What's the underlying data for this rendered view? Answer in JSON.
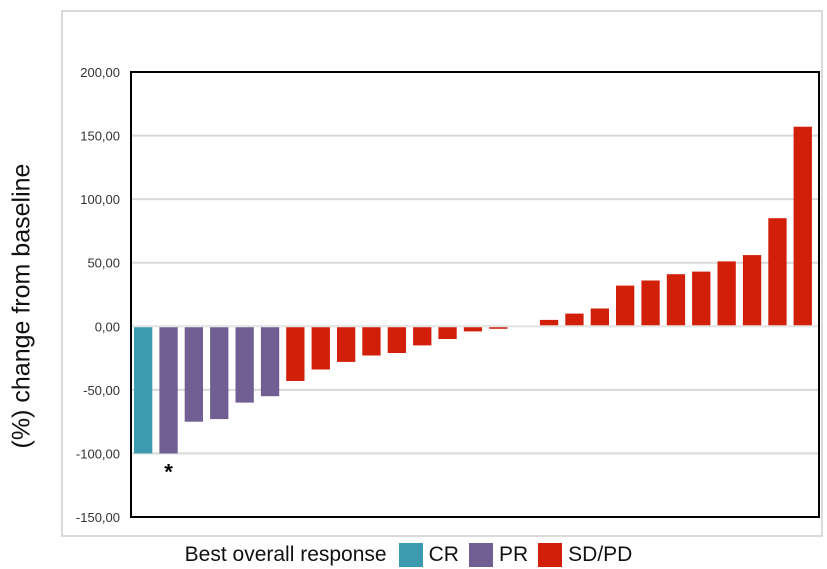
{
  "chart_data": {
    "type": "bar",
    "ylabel": "(%) change from baseline",
    "ylim": [
      -150,
      200
    ],
    "yticks": [
      -150,
      -100,
      -50,
      0,
      50,
      100,
      150,
      200
    ],
    "ytick_labels": [
      "-150,00",
      "-100,00",
      "-50,00",
      "0,00",
      "50,00",
      "100,00",
      "150,00",
      "200,00"
    ],
    "grid": true,
    "legend": {
      "title": "Best overall response",
      "placement": "bottom",
      "entries": [
        {
          "label": "CR",
          "color": "#3d9bb0"
        },
        {
          "label": "PR",
          "color": "#715e92"
        },
        {
          "label": "SD/PD",
          "color": "#d21f0a"
        }
      ]
    },
    "values": [
      -100,
      -100,
      -75,
      -73,
      -60,
      -55,
      -43,
      -34,
      -28,
      -23,
      -21,
      -15,
      -10,
      -4,
      -2,
      0,
      5,
      10,
      14,
      32,
      36,
      41,
      43,
      51,
      56,
      85,
      157
    ],
    "groups": [
      "CR",
      "PR",
      "PR",
      "PR",
      "PR",
      "PR",
      "SD/PD",
      "SD/PD",
      "SD/PD",
      "SD/PD",
      "SD/PD",
      "SD/PD",
      "SD/PD",
      "SD/PD",
      "SD/PD",
      "SD/PD",
      "SD/PD",
      "SD/PD",
      "SD/PD",
      "SD/PD",
      "SD/PD",
      "SD/PD",
      "SD/PD",
      "SD/PD",
      "SD/PD",
      "SD/PD",
      "SD/PD"
    ],
    "annotations": [
      {
        "text": "*",
        "bar_index": 1
      }
    ]
  }
}
